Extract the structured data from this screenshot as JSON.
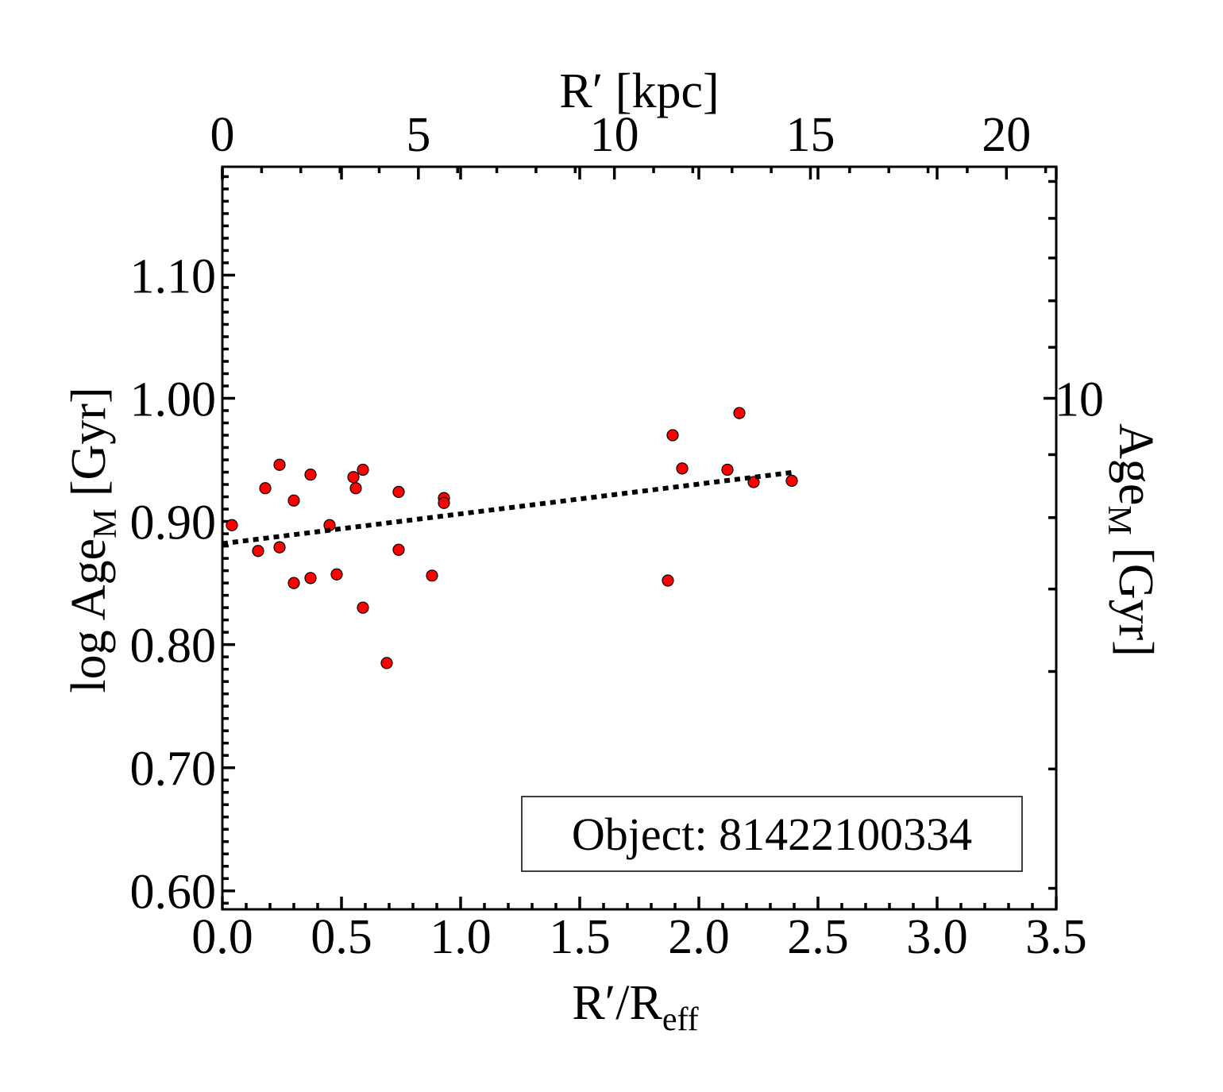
{
  "chart_data": {
    "type": "scatter",
    "annotation": "Object: 81422100334",
    "axes": {
      "bottom": {
        "label_main": "R′/R",
        "label_sub": "eff",
        "range": [
          0.0,
          3.5
        ],
        "ticks": [
          0.0,
          0.5,
          1.0,
          1.5,
          2.0,
          2.5,
          3.0,
          3.5
        ],
        "tick_labels": [
          "0.0",
          "0.5",
          "1.0",
          "1.5",
          "2.0",
          "2.5",
          "3.0",
          "3.5"
        ]
      },
      "top": {
        "label": "R′ [kpc]",
        "range": [
          0,
          21.27
        ],
        "ticks": [
          0,
          5,
          10,
          15,
          20
        ],
        "tick_labels": [
          "0",
          "5",
          "10",
          "15",
          "20"
        ]
      },
      "left": {
        "label_pre": "log Age",
        "label_sub": "M",
        "label_post": " [Gyr]",
        "range": [
          0.585,
          1.188
        ],
        "ticks": [
          0.6,
          0.7,
          0.8,
          0.9,
          1.0,
          1.1
        ],
        "tick_labels": [
          "0.60",
          "0.70",
          "0.80",
          "0.90",
          "1.00",
          "1.10"
        ]
      },
      "right": {
        "label_pre": "Age",
        "label_sub": "M",
        "label_post": " [Gyr]",
        "ticks": [
          10
        ],
        "tick_labels": [
          "10"
        ]
      }
    },
    "series": [
      {
        "style": "scatter",
        "color": "#ff0000",
        "points": [
          [
            0.04,
            0.897
          ],
          [
            0.15,
            0.876
          ],
          [
            0.18,
            0.927
          ],
          [
            0.24,
            0.946
          ],
          [
            0.24,
            0.879
          ],
          [
            0.3,
            0.917
          ],
          [
            0.3,
            0.85
          ],
          [
            0.37,
            0.938
          ],
          [
            0.37,
            0.854
          ],
          [
            0.45,
            0.897
          ],
          [
            0.48,
            0.857
          ],
          [
            0.55,
            0.936
          ],
          [
            0.56,
            0.927
          ],
          [
            0.59,
            0.942
          ],
          [
            0.59,
            0.83
          ],
          [
            0.69,
            0.785
          ],
          [
            0.74,
            0.924
          ],
          [
            0.74,
            0.877
          ],
          [
            0.88,
            0.856
          ],
          [
            0.93,
            0.919
          ],
          [
            0.93,
            0.915
          ],
          [
            1.89,
            0.97
          ],
          [
            1.93,
            0.943
          ],
          [
            1.87,
            0.852
          ],
          [
            2.12,
            0.942
          ],
          [
            2.17,
            0.988
          ],
          [
            2.23,
            0.932
          ],
          [
            2.39,
            0.933
          ]
        ]
      },
      {
        "style": "dotted-line",
        "color": "#000000",
        "points": [
          [
            0.0,
            0.882
          ],
          [
            2.4,
            0.94
          ]
        ]
      }
    ]
  }
}
